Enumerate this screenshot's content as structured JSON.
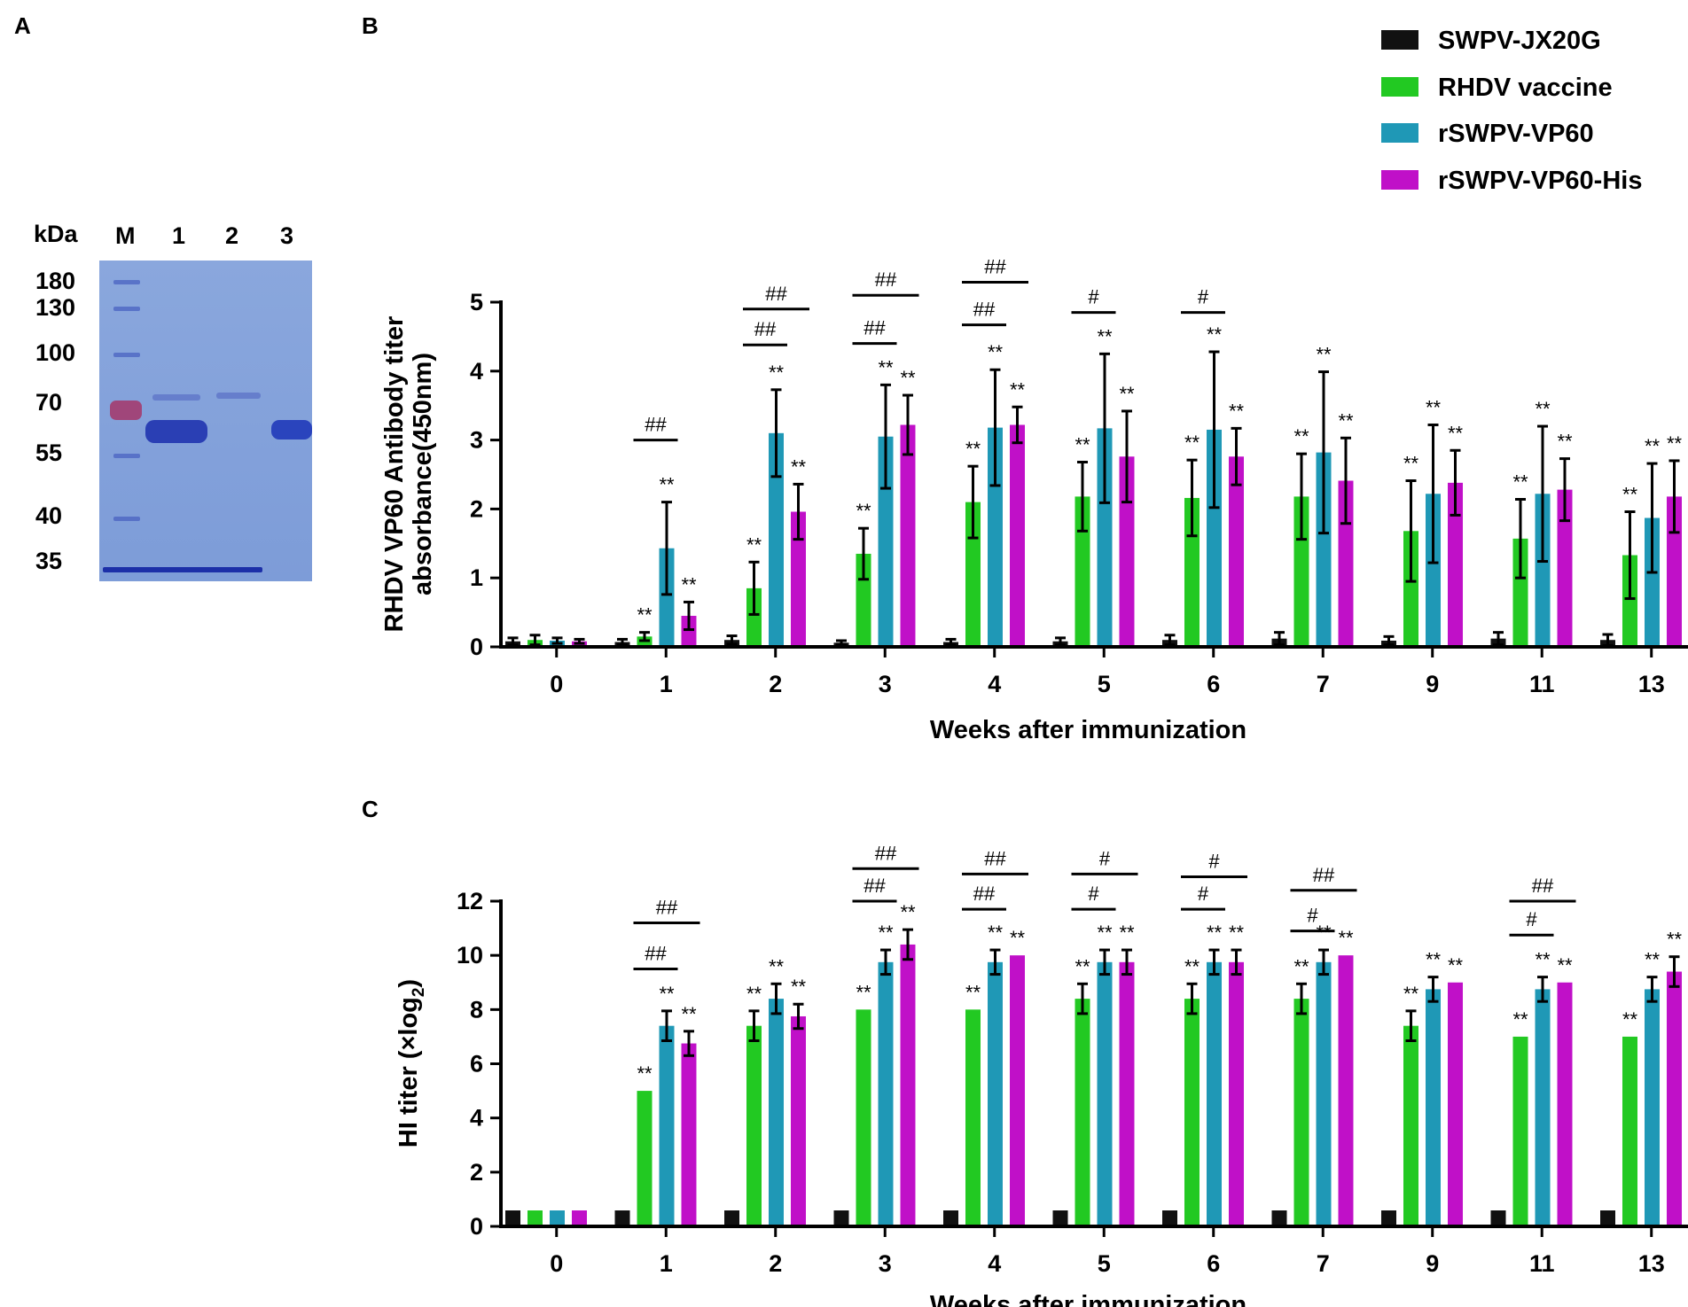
{
  "panels": {
    "a": "A",
    "b": "B",
    "c": "C"
  },
  "colors": {
    "SWPV-JX20G": "#111111",
    "RHDV vaccine": "#22c922",
    "rSWPV-VP60": "#1f98b6",
    "rSWPV-VP60-His": "#c010c8"
  },
  "legend": [
    "SWPV-JX20G",
    "RHDV vaccine",
    "rSWPV-VP60",
    "rSWPV-VP60-His"
  ],
  "gel": {
    "unit": "kDa",
    "lanes": [
      "M",
      "1",
      "2",
      "3"
    ],
    "markers": [
      "180",
      "130",
      "100",
      "70",
      "55",
      "40",
      "35"
    ]
  },
  "chart_data": [
    {
      "id": "B",
      "type": "bar",
      "title": "",
      "xlabel": "Weeks after immunization",
      "ylabel_lines": [
        "RHDV VP60 Antibody titer",
        "absorbance(450nm)"
      ],
      "ylim": [
        0,
        5
      ],
      "yticks": [
        "0",
        "1",
        "2",
        "3",
        "4",
        "5"
      ],
      "categories": [
        "0",
        "1",
        "2",
        "3",
        "4",
        "5",
        "6",
        "7",
        "9",
        "11",
        "13"
      ],
      "series": [
        {
          "name": "SWPV-JX20G",
          "values": [
            0.08,
            0.07,
            0.1,
            0.06,
            0.07,
            0.08,
            0.1,
            0.12,
            0.09,
            0.12,
            0.1
          ],
          "errors": [
            0.05,
            0.04,
            0.06,
            0.03,
            0.04,
            0.05,
            0.07,
            0.09,
            0.06,
            0.09,
            0.08
          ]
        },
        {
          "name": "RHDV vaccine",
          "values": [
            0.1,
            0.15,
            0.85,
            1.35,
            2.1,
            2.18,
            2.16,
            2.18,
            1.68,
            1.57,
            1.33
          ],
          "errors": [
            0.07,
            0.06,
            0.38,
            0.37,
            0.52,
            0.5,
            0.55,
            0.62,
            0.73,
            0.57,
            0.63
          ]
        },
        {
          "name": "rSWPV-VP60",
          "values": [
            0.09,
            1.43,
            3.1,
            3.05,
            3.18,
            3.17,
            3.15,
            2.82,
            2.22,
            2.22,
            1.87
          ],
          "errors": [
            0.04,
            0.67,
            0.63,
            0.75,
            0.84,
            1.08,
            1.13,
            1.17,
            1.0,
            0.98,
            0.79
          ]
        },
        {
          "name": "rSWPV-VP60-His",
          "values": [
            0.08,
            0.45,
            1.96,
            3.22,
            3.22,
            2.76,
            2.76,
            2.41,
            2.38,
            2.28,
            2.18
          ],
          "errors": [
            0.03,
            0.2,
            0.4,
            0.43,
            0.26,
            0.66,
            0.41,
            0.62,
            0.47,
            0.45,
            0.52
          ]
        }
      ],
      "stars": "**",
      "sigbars": [
        {
          "c": 1,
          "from": 1,
          "to": 2,
          "y": 3.0,
          "label": "##"
        },
        {
          "c": 2,
          "from": 1,
          "to": 2,
          "y": 4.38,
          "label": "##"
        },
        {
          "c": 2,
          "from": 1,
          "to": 3,
          "y": 4.9,
          "label": "##"
        },
        {
          "c": 3,
          "from": 1,
          "to": 2,
          "y": 4.4,
          "label": "##"
        },
        {
          "c": 3,
          "from": 1,
          "to": 3,
          "y": 5.1,
          "label": "##"
        },
        {
          "c": 4,
          "from": 1,
          "to": 2,
          "y": 4.67,
          "label": "##"
        },
        {
          "c": 4,
          "from": 1,
          "to": 3,
          "y": 5.29,
          "label": "##"
        },
        {
          "c": 5,
          "from": 1,
          "to": 2,
          "y": 4.85,
          "label": "#"
        },
        {
          "c": 6,
          "from": 1,
          "to": 2,
          "y": 4.85,
          "label": "#"
        },
        {
          "c": 13,
          "from": 1,
          "to": 3,
          "y": 3.3,
          "label": "#"
        }
      ]
    },
    {
      "id": "C",
      "type": "bar",
      "title": "",
      "xlabel": "Weeks after immunization",
      "ylabel_main": "HI titer (×log",
      "ylabel_sub": "2",
      "ylabel_end": ")",
      "ylim": [
        0,
        12
      ],
      "yticks": [
        "0",
        "2",
        "4",
        "6",
        "8",
        "10",
        "12"
      ],
      "categories": [
        "0",
        "1",
        "2",
        "3",
        "4",
        "5",
        "6",
        "7",
        "9",
        "11",
        "13"
      ],
      "series": [
        {
          "name": "SWPV-JX20G",
          "values": [
            0,
            0,
            0,
            0,
            0,
            0,
            0,
            0,
            0,
            0,
            0
          ],
          "errors": [
            0,
            0,
            0,
            0,
            0,
            0,
            0,
            0,
            0,
            0,
            0
          ]
        },
        {
          "name": "RHDV vaccine",
          "values": [
            0,
            5,
            7.4,
            8,
            8,
            8.4,
            8.4,
            8.4,
            7.4,
            7,
            7
          ],
          "errors": [
            0,
            0,
            0.55,
            0,
            0,
            0.55,
            0.55,
            0.55,
            0.55,
            0,
            0
          ]
        },
        {
          "name": "rSWPV-VP60",
          "values": [
            0,
            7.4,
            8.4,
            9.75,
            9.75,
            9.75,
            9.75,
            9.75,
            8.75,
            8.75,
            8.75
          ],
          "errors": [
            0,
            0.55,
            0.55,
            0.45,
            0.45,
            0.45,
            0.45,
            0.45,
            0.45,
            0.45,
            0.45
          ]
        },
        {
          "name": "rSWPV-VP60-His",
          "values": [
            0,
            6.75,
            7.75,
            10.4,
            10,
            9.75,
            9.75,
            10,
            9,
            9,
            9.4
          ],
          "errors": [
            0,
            0.45,
            0.45,
            0.55,
            0,
            0.45,
            0.45,
            0,
            0,
            0,
            0.55
          ]
        }
      ],
      "stars": "**",
      "sigbars": [
        {
          "c": 1,
          "from": 1,
          "to": 2,
          "y": 9.5,
          "label": "##"
        },
        {
          "c": 1,
          "from": 1,
          "to": 3,
          "y": 11.2,
          "label": "##"
        },
        {
          "c": 3,
          "from": 1,
          "to": 2,
          "y": 12.0,
          "label": "##"
        },
        {
          "c": 3,
          "from": 1,
          "to": 3,
          "y": 13.2,
          "label": "##"
        },
        {
          "c": 4,
          "from": 1,
          "to": 2,
          "y": 11.7,
          "label": "##"
        },
        {
          "c": 4,
          "from": 1,
          "to": 3,
          "y": 13.0,
          "label": "##"
        },
        {
          "c": 5,
          "from": 1,
          "to": 2,
          "y": 11.7,
          "label": "#"
        },
        {
          "c": 5,
          "from": 1,
          "to": 3,
          "y": 13.0,
          "label": "#"
        },
        {
          "c": 6,
          "from": 1,
          "to": 2,
          "y": 11.7,
          "label": "#"
        },
        {
          "c": 6,
          "from": 1,
          "to": 3,
          "y": 12.9,
          "label": "#"
        },
        {
          "c": 7,
          "from": 1,
          "to": 2,
          "y": 10.9,
          "label": "#"
        },
        {
          "c": 7,
          "from": 1,
          "to": 3,
          "y": 12.4,
          "label": "##"
        },
        {
          "c": 9,
          "from": 1,
          "to": 2,
          "y": 10.75,
          "label": "#"
        },
        {
          "c": 9,
          "from": 1,
          "to": 3,
          "y": 12.0,
          "label": "##"
        },
        {
          "c": 11,
          "from": 1,
          "to": 2,
          "y": 10.75,
          "label": "##"
        },
        {
          "c": 11,
          "from": 1,
          "to": 3,
          "y": 12.0,
          "label": "##"
        },
        {
          "c": 13,
          "from": 1,
          "to": 2,
          "y": 10.5,
          "label": "##"
        },
        {
          "c": 13,
          "from": 1,
          "to": 3,
          "y": 11.9,
          "label": "##"
        }
      ]
    }
  ]
}
